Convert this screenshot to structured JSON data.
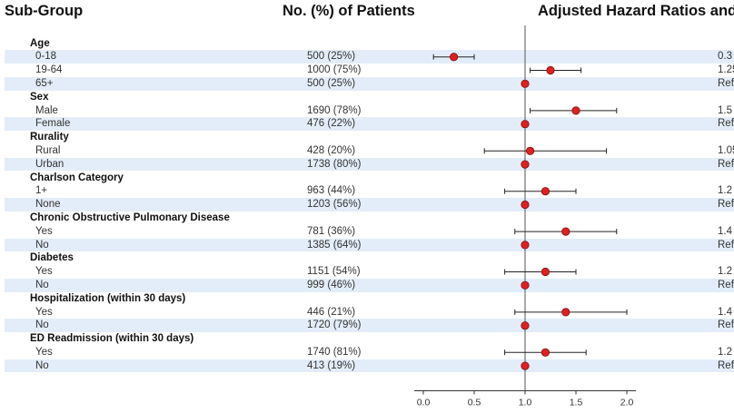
{
  "headers": {
    "subgroup": "Sub-Group",
    "patients": "No. (%) of Patients",
    "hazard": "Adjusted Hazard Ratios and"
  },
  "colors": {
    "band": "#e3edf9",
    "marker": "#e0201f",
    "reference_line": "#555555"
  },
  "chart_data": {
    "type": "forest",
    "title": "",
    "xlim": [
      0.0,
      2.0
    ],
    "ticks": [
      "0.0",
      "0.5",
      "1.0",
      "1.5",
      "2.0"
    ],
    "tick_values": [
      0.0,
      0.5,
      1.0,
      1.5,
      2.0
    ],
    "reference_value": 1.0,
    "rows": [
      {
        "kind": "group",
        "label": "Age"
      },
      {
        "kind": "item",
        "label": "0-18",
        "patients": "500 (25%)",
        "hr": 0.3,
        "lo": 0.1,
        "hi": 0.5,
        "hr_text": "0.3"
      },
      {
        "kind": "item",
        "label": "19-64",
        "patients": "1000 (75%)",
        "hr": 1.25,
        "lo": 1.05,
        "hi": 1.55,
        "hr_text": "1.25"
      },
      {
        "kind": "item",
        "label": "65+",
        "patients": "500 (25%)",
        "hr": 1.0,
        "lo": null,
        "hi": null,
        "hr_text": "Ref"
      },
      {
        "kind": "group",
        "label": "Sex"
      },
      {
        "kind": "item",
        "label": "Male",
        "patients": "1690 (78%)",
        "hr": 1.5,
        "lo": 1.05,
        "hi": 1.9,
        "hr_text": "1.5"
      },
      {
        "kind": "item",
        "label": "Female",
        "patients": "476 (22%)",
        "hr": 1.0,
        "lo": null,
        "hi": null,
        "hr_text": "Ref"
      },
      {
        "kind": "group",
        "label": "Rurality"
      },
      {
        "kind": "item",
        "label": "Rural",
        "patients": "428 (20%)",
        "hr": 1.05,
        "lo": 0.6,
        "hi": 1.8,
        "hr_text": "1.05"
      },
      {
        "kind": "item",
        "label": "Urban",
        "patients": "1738 (80%)",
        "hr": 1.0,
        "lo": null,
        "hi": null,
        "hr_text": "Ref"
      },
      {
        "kind": "group",
        "label": "Charlson Category"
      },
      {
        "kind": "item",
        "label": "1+",
        "patients": "963 (44%)",
        "hr": 1.2,
        "lo": 0.8,
        "hi": 1.5,
        "hr_text": "1.2"
      },
      {
        "kind": "item",
        "label": "None",
        "patients": "1203 (56%)",
        "hr": 1.0,
        "lo": null,
        "hi": null,
        "hr_text": "Ref"
      },
      {
        "kind": "group",
        "label": "Chronic Obstructive Pulmonary Disease"
      },
      {
        "kind": "item",
        "label": "Yes",
        "patients": "781 (36%)",
        "hr": 1.4,
        "lo": 0.9,
        "hi": 1.9,
        "hr_text": "1.4"
      },
      {
        "kind": "item",
        "label": "No",
        "patients": "1385 (64%)",
        "hr": 1.0,
        "lo": null,
        "hi": null,
        "hr_text": "Ref"
      },
      {
        "kind": "group",
        "label": "Diabetes"
      },
      {
        "kind": "item",
        "label": "Yes",
        "patients": "1151 (54%)",
        "hr": 1.2,
        "lo": 0.8,
        "hi": 1.5,
        "hr_text": "1.2"
      },
      {
        "kind": "item",
        "label": "No",
        "patients": "999 (46%)",
        "hr": 1.0,
        "lo": null,
        "hi": null,
        "hr_text": "Ref"
      },
      {
        "kind": "group",
        "label": "Hospitalization (within 30 days)"
      },
      {
        "kind": "item",
        "label": "Yes",
        "patients": "446 (21%)",
        "hr": 1.4,
        "lo": 0.9,
        "hi": 2.0,
        "hr_text": "1.4"
      },
      {
        "kind": "item",
        "label": "No",
        "patients": "1720 (79%)",
        "hr": 1.0,
        "lo": null,
        "hi": null,
        "hr_text": "Ref"
      },
      {
        "kind": "group",
        "label": "ED Readmission (within 30 days)"
      },
      {
        "kind": "item",
        "label": "Yes",
        "patients": "1740 (81%)",
        "hr": 1.2,
        "lo": 0.8,
        "hi": 1.6,
        "hr_text": "1.2"
      },
      {
        "kind": "item",
        "label": "No",
        "patients": "413 (19%)",
        "hr": 1.0,
        "lo": null,
        "hi": null,
        "hr_text": "Ref"
      }
    ]
  }
}
